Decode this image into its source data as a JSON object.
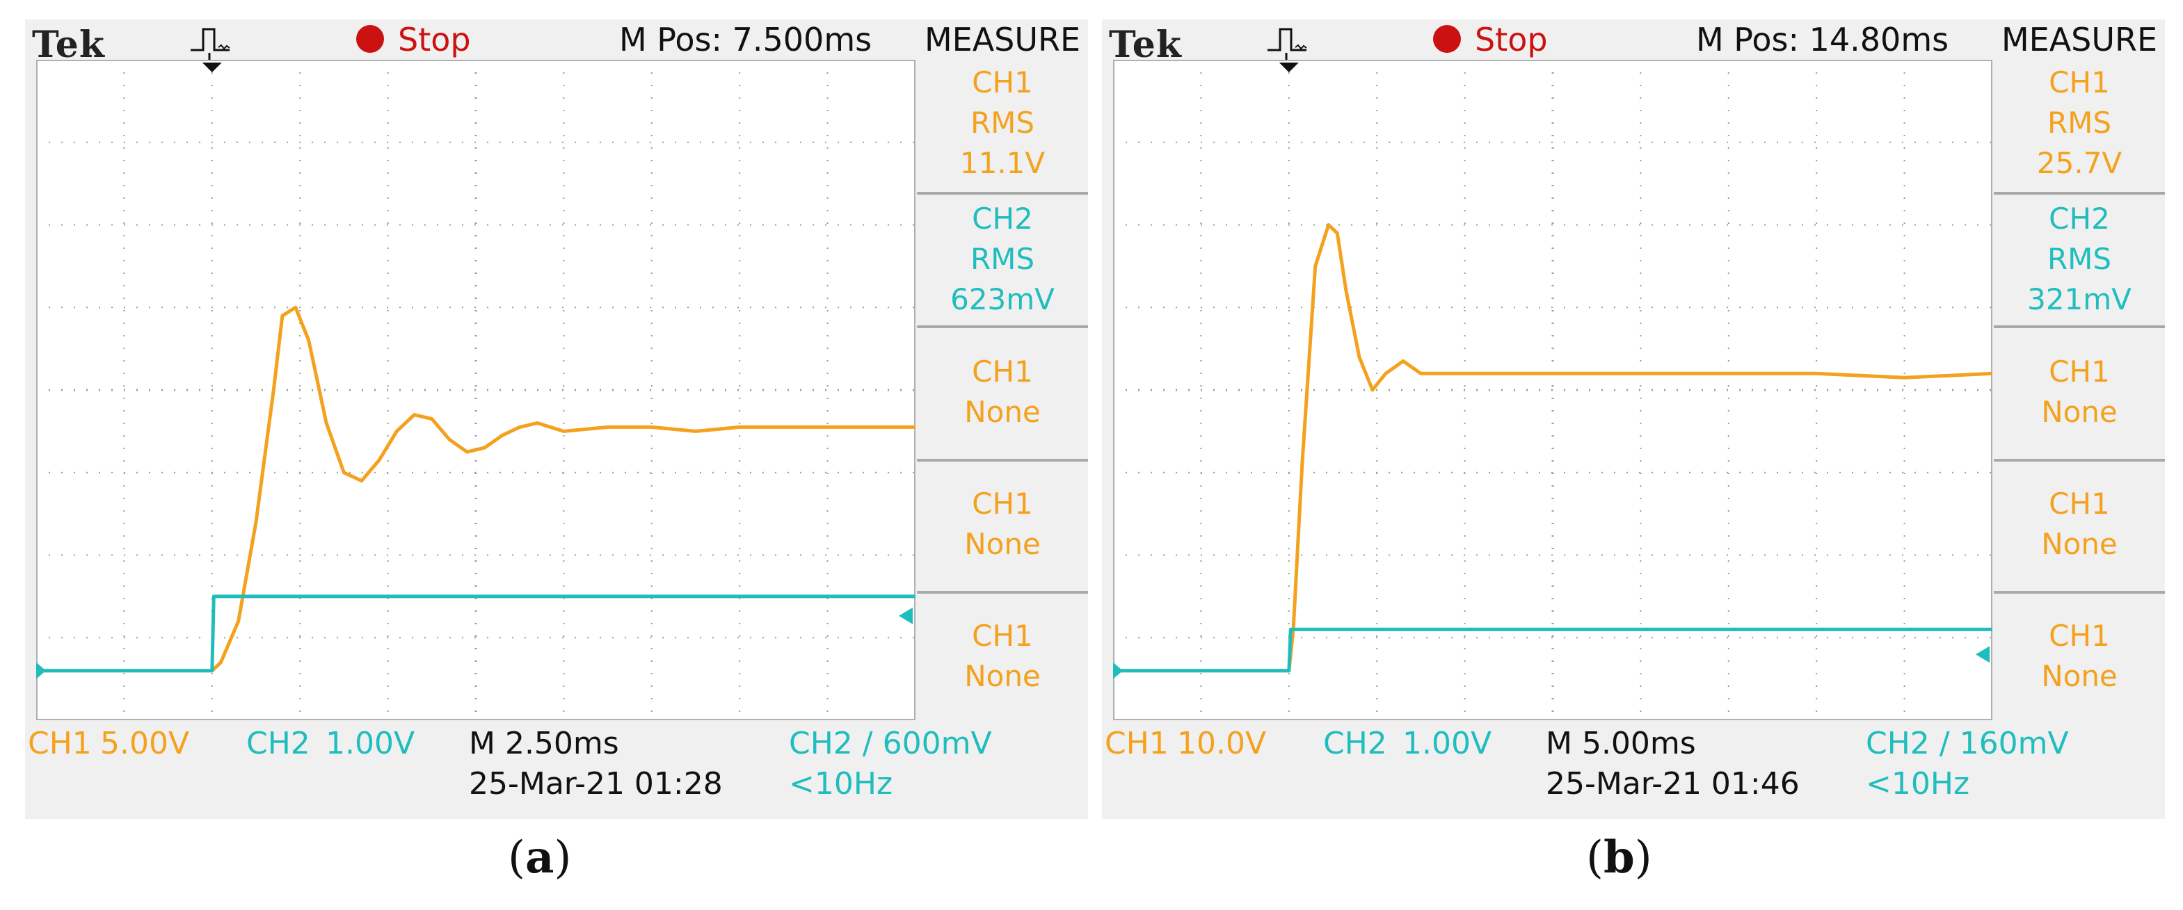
{
  "colors": {
    "ch1": "#f4a11e",
    "ch2": "#1fbdbd",
    "stop": "#cc1111",
    "background": "#f0f0f0",
    "grid": "#9a9a9a"
  },
  "panels": [
    {
      "caption_open": "(",
      "caption_letter": "a",
      "caption_close": ")",
      "brand": "Tek",
      "status": "Stop",
      "mpos": "M Pos: 7.500ms",
      "measure_header": "MEASURE",
      "measure": [
        {
          "channel": "CH1",
          "type": "RMS",
          "value": "11.1V",
          "color": "orange"
        },
        {
          "channel": "CH2",
          "type": "RMS",
          "value": "623mV",
          "color": "cyan"
        },
        {
          "channel": "CH1",
          "type": "None",
          "value": "",
          "color": "orange"
        },
        {
          "channel": "CH1",
          "type": "None",
          "value": "",
          "color": "orange"
        },
        {
          "channel": "CH1",
          "type": "None",
          "value": "",
          "color": "orange"
        }
      ],
      "ch1_label": "CH1",
      "ch1_scale": "5.00V",
      "ch2_label": "CH2",
      "ch2_scale": "1.00V",
      "timebase": "M 2.50ms",
      "date": "25-Mar-21 01:28",
      "trigger": "CH2 ∕ 600mV",
      "freq": "<10Hz",
      "icons": [
        "pulse-trigger-icon",
        "trigger-position-arrow-icon",
        "ground-marker-icon",
        "trigger-level-arrow-icon"
      ]
    },
    {
      "caption_open": "(",
      "caption_letter": "b",
      "caption_close": ")",
      "brand": "Tek",
      "status": "Stop",
      "mpos": "M Pos: 14.80ms",
      "measure_header": "MEASURE",
      "measure": [
        {
          "channel": "CH1",
          "type": "RMS",
          "value": "25.7V",
          "color": "orange"
        },
        {
          "channel": "CH2",
          "type": "RMS",
          "value": "321mV",
          "color": "cyan"
        },
        {
          "channel": "CH1",
          "type": "None",
          "value": "",
          "color": "orange"
        },
        {
          "channel": "CH1",
          "type": "None",
          "value": "",
          "color": "orange"
        },
        {
          "channel": "CH1",
          "type": "None",
          "value": "",
          "color": "orange"
        }
      ],
      "ch1_label": "CH1",
      "ch1_scale": "10.0V",
      "ch2_label": "CH2",
      "ch2_scale": "1.00V",
      "timebase": "M 5.00ms",
      "date": "25-Mar-21 01:46",
      "trigger": "CH2 ∕ 160mV",
      "freq": "<10Hz",
      "icons": [
        "pulse-trigger-icon",
        "trigger-position-arrow-icon",
        "ground-marker-icon",
        "trigger-level-arrow-icon"
      ]
    }
  ],
  "chart_data": [
    {
      "type": "line",
      "grid": true,
      "x_divisions": 10,
      "y_divisions": 8,
      "x_unit_per_div": "2.50ms",
      "series": [
        {
          "name": "CH1",
          "unit_per_div": "5.00V",
          "color": "#f4a11e",
          "x": [
            0,
            2,
            2.1,
            2.3,
            2.5,
            2.7,
            2.8,
            2.95,
            3.1,
            3.3,
            3.5,
            3.7,
            3.9,
            4.1,
            4.3,
            4.5,
            4.7,
            4.9,
            5.1,
            5.3,
            5.5,
            5.7,
            6,
            6.5,
            7,
            7.5,
            8,
            8.5,
            9,
            9.5,
            10
          ],
          "y": [
            0,
            0,
            0.1,
            0.6,
            1.8,
            3.4,
            4.3,
            4.4,
            4.0,
            3.0,
            2.4,
            2.3,
            2.55,
            2.9,
            3.1,
            3.05,
            2.8,
            2.65,
            2.7,
            2.85,
            2.95,
            3.0,
            2.9,
            2.95,
            2.95,
            2.9,
            2.95,
            2.95,
            2.95,
            2.95,
            2.95
          ]
        },
        {
          "name": "CH2",
          "unit_per_div": "1.00V",
          "color": "#1fbdbd",
          "x": [
            0,
            2,
            2.02,
            10
          ],
          "y": [
            0,
            0,
            0.9,
            0.9
          ]
        }
      ]
    },
    {
      "type": "line",
      "grid": true,
      "x_divisions": 10,
      "y_divisions": 8,
      "x_unit_per_div": "5.00ms",
      "series": [
        {
          "name": "CH1",
          "unit_per_div": "10.0V",
          "color": "#f4a11e",
          "x": [
            0,
            2,
            2.05,
            2.15,
            2.3,
            2.45,
            2.55,
            2.65,
            2.8,
            2.95,
            3.1,
            3.3,
            3.5,
            3.7,
            4,
            5,
            6,
            7,
            8,
            9,
            10
          ],
          "y": [
            0,
            0,
            0.5,
            2.5,
            4.9,
            5.4,
            5.3,
            4.6,
            3.8,
            3.4,
            3.6,
            3.75,
            3.6,
            3.6,
            3.6,
            3.6,
            3.6,
            3.6,
            3.6,
            3.55,
            3.6
          ]
        },
        {
          "name": "CH2",
          "unit_per_div": "1.00V",
          "color": "#1fbdbd",
          "x": [
            0,
            2,
            2.02,
            10
          ],
          "y": [
            0,
            0,
            0.5,
            0.5
          ]
        }
      ]
    }
  ]
}
